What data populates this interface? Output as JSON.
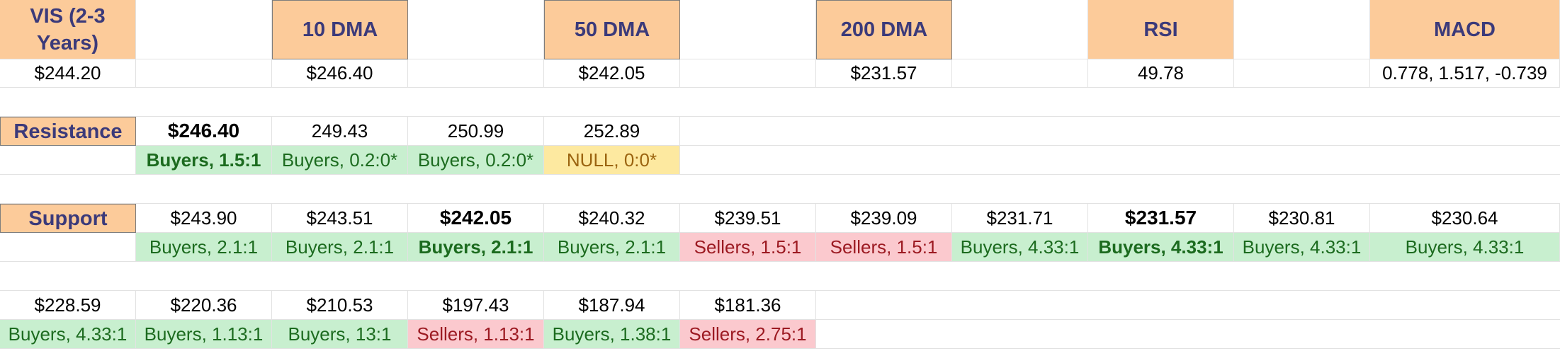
{
  "headers": {
    "vis": "VIS (2-3 Years)",
    "dma10": "10 DMA",
    "dma50": "50 DMA",
    "dma200": "200 DMA",
    "rsi": "RSI",
    "macd": "MACD"
  },
  "values": {
    "vis": "$244.20",
    "dma10": "$246.40",
    "dma50": "$242.05",
    "dma200": "$231.57",
    "rsi": "49.78",
    "macd": "0.778, 1.517, -0.739"
  },
  "resistance": {
    "label": "Resistance",
    "levels": [
      "$246.40",
      "249.43",
      "250.99",
      "252.89"
    ],
    "ratios": [
      "Buyers, 1.5:1",
      "Buyers, 0.2:0*",
      "Buyers, 0.2:0*",
      "NULL, 0:0*"
    ]
  },
  "support": {
    "label": "Support",
    "levels": [
      "$243.90",
      "$243.51",
      "$242.05",
      "$240.32",
      "$239.51",
      "$239.09",
      "$231.71",
      "$231.57",
      "$230.81",
      "$230.64"
    ],
    "ratios": [
      "Buyers, 2.1:1",
      "Buyers, 2.1:1",
      "Buyers, 2.1:1",
      "Buyers, 2.1:1",
      "Sellers, 1.5:1",
      "Sellers, 1.5:1",
      "Buyers, 4.33:1",
      "Buyers, 4.33:1",
      "Buyers, 4.33:1",
      "Buyers, 4.33:1"
    ],
    "more_levels": [
      "$228.59",
      "$220.36",
      "$210.53",
      "$197.43",
      "$187.94",
      "$181.36"
    ],
    "more_ratios": [
      "Buyers, 4.33:1",
      "Buyers, 1.13:1",
      "Buyers, 13:1",
      "Sellers, 1.13:1",
      "Buyers, 1.38:1",
      "Sellers, 2.75:1"
    ]
  },
  "colors": {
    "header_fill": "#fccb9a",
    "header_text": "#3b3a7a",
    "buyers_fill": "#c8efcf",
    "buyers_text": "#1c6b1f",
    "sellers_fill": "#fbc9ce",
    "sellers_text": "#9c1a22",
    "null_fill": "#fde9a0",
    "null_text": "#9b6410"
  }
}
